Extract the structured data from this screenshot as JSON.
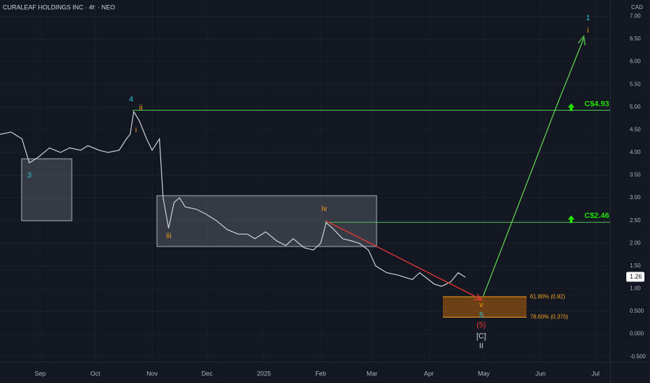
{
  "chart_data": {
    "type": "line",
    "title": "CURALEAF HOLDINGS INC · 4h · NEO",
    "currency": "CAD",
    "color": "#d1d4dc",
    "x": [
      -22,
      -16,
      -10,
      -6,
      -1,
      5,
      11,
      16,
      22,
      26,
      32,
      37,
      43,
      47,
      49,
      51,
      54,
      58,
      61,
      65,
      67,
      70,
      73,
      76,
      79,
      85,
      90,
      96,
      102,
      108,
      113,
      117,
      123,
      129,
      134,
      138,
      144,
      149,
      153,
      156,
      159,
      165,
      170,
      174,
      179,
      183,
      189,
      195,
      203,
      207,
      215,
      219,
      224,
      228,
      232
    ],
    "values": [
      4.4,
      4.45,
      4.3,
      3.77,
      3.9,
      4.1,
      4.0,
      4.1,
      4.05,
      4.15,
      4.05,
      4.0,
      4.05,
      4.3,
      4.4,
      4.9,
      4.7,
      4.3,
      4.05,
      4.3,
      3.0,
      2.33,
      2.9,
      3.0,
      2.8,
      2.75,
      2.65,
      2.5,
      2.3,
      2.2,
      2.2,
      2.1,
      2.25,
      2.05,
      1.95,
      2.1,
      1.9,
      1.85,
      2.0,
      2.45,
      2.35,
      2.1,
      2.05,
      2.0,
      1.85,
      1.5,
      1.35,
      1.3,
      1.2,
      1.35,
      1.1,
      1.05,
      1.15,
      1.35,
      1.25
    ],
    "xlim": [
      -22,
      311
    ],
    "ylim": [
      -0.62,
      7.36
    ],
    "xticks": [
      {
        "value": 0,
        "label": "Sep"
      },
      {
        "value": 30,
        "label": "Oct"
      },
      {
        "value": 61,
        "label": "Nov"
      },
      {
        "value": 91,
        "label": "Dec"
      },
      {
        "value": 122,
        "label": "2025"
      },
      {
        "value": 153,
        "label": "Feb"
      },
      {
        "value": 181,
        "label": "Mar"
      },
      {
        "value": 212,
        "label": "Apr"
      },
      {
        "value": 242,
        "label": "May"
      },
      {
        "value": 273,
        "label": "Jun"
      },
      {
        "value": 303,
        "label": "Jul"
      }
    ],
    "yticks": [
      {
        "value": 7,
        "label": "7.00"
      },
      {
        "value": 6.5,
        "label": "6.50"
      },
      {
        "value": 6,
        "label": "6.00"
      },
      {
        "value": 5.5,
        "label": "5.50"
      },
      {
        "value": 5,
        "label": "5.00"
      },
      {
        "value": 4.5,
        "label": "4.50"
      },
      {
        "value": 4,
        "label": "4.00"
      },
      {
        "value": 3.5,
        "label": "3.50"
      },
      {
        "value": 3,
        "label": "3.00"
      },
      {
        "value": 2.5,
        "label": "2.50"
      },
      {
        "value": 2,
        "label": "2.00"
      },
      {
        "value": 1.5,
        "label": "1.50"
      },
      {
        "value": 1,
        "label": "1.00"
      },
      {
        "value": 0.5,
        "label": "0.500"
      },
      {
        "value": 0,
        "label": "0.000"
      },
      {
        "value": -0.5,
        "label": "-0.500"
      }
    ],
    "last_price": 1.26,
    "levels": [
      {
        "value": 4.93,
        "label": "C$4.93"
      },
      {
        "value": 2.46,
        "label": "C$2.46"
      }
    ],
    "fib": [
      {
        "value": 0.82,
        "label": "61.80% (0.82)"
      },
      {
        "value": 0.37,
        "label": "78.60% (0.370)"
      }
    ],
    "annotations": [
      "1",
      "i",
      "4",
      "ii",
      "i",
      "3",
      "iii",
      "iv",
      "v",
      "5",
      "(5)",
      "[C]",
      "II"
    ],
    "grid": true
  }
}
